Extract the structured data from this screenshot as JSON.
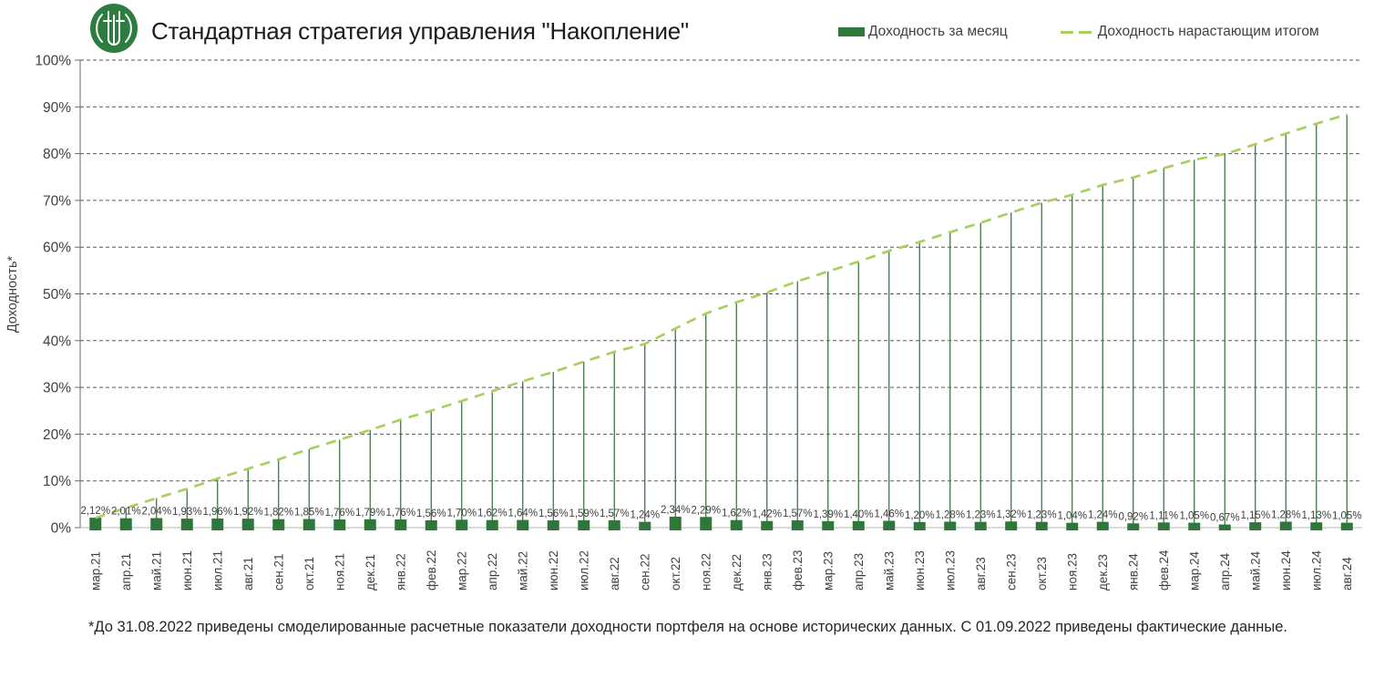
{
  "header": {
    "title": "Стандартная стратегия управления \"Накопление\""
  },
  "legend": {
    "monthly": {
      "label": "Доходность за месяц",
      "swatch_color": "#2e7639"
    },
    "cumulative": {
      "label": "Доходность нарастающим итогом",
      "swatch_color": "#a8cf5f"
    }
  },
  "y_axis": {
    "title": "Доходность*",
    "ticks": [
      "0%",
      "10%",
      "20%",
      "30%",
      "40%",
      "50%",
      "60%",
      "70%",
      "80%",
      "90%",
      "100%"
    ]
  },
  "footnote": "*До 31.08.2022 приведены смоделированные расчетные показатели доходности портфеля на основе исторических данных. С 01.09.2022 приведены фактические данные.",
  "colors": {
    "bar": "#2e7639",
    "drop_line": "#2e6b36",
    "cumulative_line": "#a8cf5f",
    "gridline": "#595959",
    "bottom_axis": "#b7b7b7",
    "left_axis": "#6a6a6a",
    "text": "#404040",
    "data_label": "#3f3f3f"
  },
  "chart_data": {
    "type": "bar",
    "title": "Стандартная стратегия управления \"Накопление\"",
    "xlabel": "",
    "ylabel": "Доходность*",
    "ylim": [
      0,
      100
    ],
    "ytick_step": 10,
    "grid": "horizontal dashed",
    "legend_position": "top-right",
    "drop_lines": true,
    "categories": [
      "мар.21",
      "апр.21",
      "май.21",
      "июн.21",
      "июл.21",
      "авг.21",
      "сен.21",
      "окт.21",
      "ноя.21",
      "дек.21",
      "янв.22",
      "фев.22",
      "мар.22",
      "апр.22",
      "май.22",
      "июн.22",
      "июл.22",
      "авг.22",
      "сен.22",
      "окт.22",
      "ноя.22",
      "дек.22",
      "янв.23",
      "фев.23",
      "мар.23",
      "апр.23",
      "май.23",
      "июн.23",
      "июл.23",
      "авг.23",
      "сен.23",
      "окт.23",
      "ноя.23",
      "дек.23",
      "янв.24",
      "фев.24",
      "мар.24",
      "апр.24",
      "май.24",
      "июн.24",
      "июл.24",
      "авг.24"
    ],
    "series": [
      {
        "name": "Доходность за месяц",
        "type": "bar",
        "color": "#2e7639",
        "values": [
          2.12,
          2.01,
          2.04,
          1.93,
          1.96,
          1.92,
          1.82,
          1.85,
          1.76,
          1.79,
          1.76,
          1.56,
          1.7,
          1.62,
          1.64,
          1.56,
          1.59,
          1.57,
          1.24,
          2.34,
          2.29,
          1.62,
          1.42,
          1.57,
          1.39,
          1.4,
          1.46,
          1.2,
          1.28,
          1.23,
          1.32,
          1.23,
          1.04,
          1.24,
          0.92,
          1.11,
          1.05,
          0.67,
          1.15,
          1.28,
          1.13,
          1.05
        ],
        "labels": [
          "2,12%",
          "2,01%",
          "2,04%",
          "1,93%",
          "1,96%",
          "1,92%",
          "1,82%",
          "1,85%",
          "1,76%",
          "1,79%",
          "1,76%",
          "1,56%",
          "1,70%",
          "1,62%",
          "1,64%",
          "1,56%",
          "1,59%",
          "1,57%",
          "1,24%",
          "2,34%",
          "2,29%",
          "1,62%",
          "1,42%",
          "1,57%",
          "1,39%",
          "1,40%",
          "1,46%",
          "1,20%",
          "1,28%",
          "1,23%",
          "1,32%",
          "1,23%",
          "1,04%",
          "1,24%",
          "0,92%",
          "1,11%",
          "1,05%",
          "0,67%",
          "1,15%",
          "1,28%",
          "1,13%",
          "1,05%"
        ]
      },
      {
        "name": "Доходность нарастающим итогом",
        "type": "dashed-line",
        "color": "#a8cf5f",
        "values": [
          2.1,
          4.2,
          6.3,
          8.3,
          10.5,
          12.6,
          14.6,
          16.8,
          18.8,
          20.9,
          23.1,
          25.0,
          27.1,
          29.2,
          31.3,
          33.3,
          35.5,
          37.6,
          39.3,
          42.6,
          45.8,
          48.2,
          50.3,
          52.7,
          54.8,
          56.9,
          59.2,
          61.1,
          63.2,
          65.2,
          67.4,
          69.5,
          71.2,
          73.3,
          74.9,
          76.9,
          78.7,
          79.9,
          82.0,
          84.3,
          86.4,
          88.4
        ]
      }
    ]
  }
}
